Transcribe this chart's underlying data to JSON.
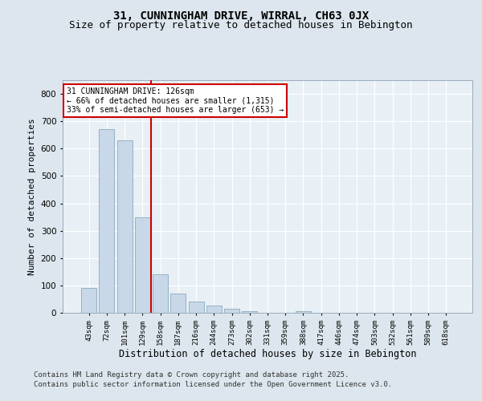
{
  "title": "31, CUNNINGHAM DRIVE, WIRRAL, CH63 0JX",
  "subtitle": "Size of property relative to detached houses in Bebington",
  "xlabel": "Distribution of detached houses by size in Bebington",
  "ylabel": "Number of detached properties",
  "categories": [
    "43sqm",
    "72sqm",
    "101sqm",
    "129sqm",
    "158sqm",
    "187sqm",
    "216sqm",
    "244sqm",
    "273sqm",
    "302sqm",
    "331sqm",
    "359sqm",
    "388sqm",
    "417sqm",
    "446sqm",
    "474sqm",
    "503sqm",
    "532sqm",
    "561sqm",
    "589sqm",
    "618sqm"
  ],
  "values": [
    90,
    670,
    630,
    350,
    140,
    70,
    40,
    25,
    15,
    5,
    0,
    0,
    5,
    0,
    0,
    0,
    0,
    0,
    0,
    0,
    0
  ],
  "bar_color": "#c8d8e8",
  "bar_edge_color": "#8aaabb",
  "red_line_x": 3.5,
  "annotation_line1": "31 CUNNINGHAM DRIVE: 126sqm",
  "annotation_line2": "← 66% of detached houses are smaller (1,315)",
  "annotation_line3": "33% of semi-detached houses are larger (653) →",
  "annotation_box_color": "#ffffff",
  "annotation_box_edge_color": "#cc0000",
  "ylim": [
    0,
    850
  ],
  "yticks": [
    0,
    100,
    200,
    300,
    400,
    500,
    600,
    700,
    800
  ],
  "bg_color": "#dde6ee",
  "plot_bg_color": "#e8eff5",
  "grid_color": "#ffffff",
  "footer_line1": "Contains HM Land Registry data © Crown copyright and database right 2025.",
  "footer_line2": "Contains public sector information licensed under the Open Government Licence v3.0.",
  "title_fontsize": 10,
  "subtitle_fontsize": 9,
  "footer_fontsize": 6.5
}
